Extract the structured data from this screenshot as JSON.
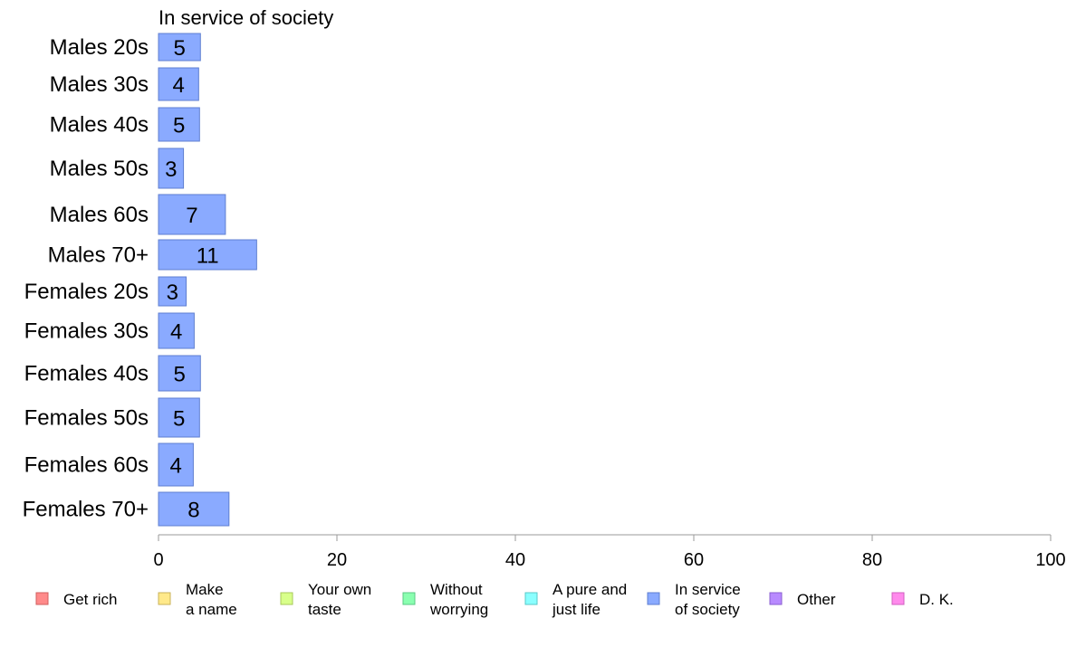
{
  "chart_data": {
    "type": "bar",
    "orientation": "horizontal",
    "panel_title": "In service of society",
    "categories": [
      "Males 20s",
      "Males 30s",
      "Males 40s",
      "Males 50s",
      "Males 60s",
      "Males 70+",
      "Females 20s",
      "Females 30s",
      "Females 40s",
      "Females 50s",
      "Females 60s",
      "Females 70+"
    ],
    "series": [
      {
        "name": "In service of society",
        "values": [
          5,
          4,
          5,
          3,
          7,
          11,
          3,
          4,
          5,
          5,
          4,
          8
        ]
      }
    ],
    "bar_display_values": [
      4.7,
      4.5,
      4.6,
      2.8,
      7.5,
      11,
      3.1,
      4.0,
      4.7,
      4.6,
      3.9,
      7.9
    ],
    "xlim": [
      0,
      100
    ],
    "xticks": [
      0,
      20,
      40,
      60,
      80,
      100
    ],
    "bar_color": "#8aaaff",
    "bar_stroke": "#5f7fd0",
    "legend_position": "bottom",
    "legend": [
      {
        "lines": [
          "Get rich"
        ],
        "color": "#ff8a8a",
        "stroke": "#d05f5f"
      },
      {
        "lines": [
          "Make",
          "a name"
        ],
        "color": "#ffe98a",
        "stroke": "#c9b25a"
      },
      {
        "lines": [
          "Your own",
          "taste"
        ],
        "color": "#d8ff8a",
        "stroke": "#a7c95a"
      },
      {
        "lines": [
          "Without",
          "worrying"
        ],
        "color": "#8affb0",
        "stroke": "#5ac984"
      },
      {
        "lines": [
          "A pure and",
          "just life"
        ],
        "color": "#8affff",
        "stroke": "#5ac9c9"
      },
      {
        "lines": [
          "In service",
          "of society"
        ],
        "color": "#8aaaff",
        "stroke": "#5f7fd0"
      },
      {
        "lines": [
          "Other"
        ],
        "color": "#b88aff",
        "stroke": "#8a5fd0"
      },
      {
        "lines": [
          "D. K."
        ],
        "color": "#ff8aec",
        "stroke": "#d05fc0"
      }
    ]
  }
}
